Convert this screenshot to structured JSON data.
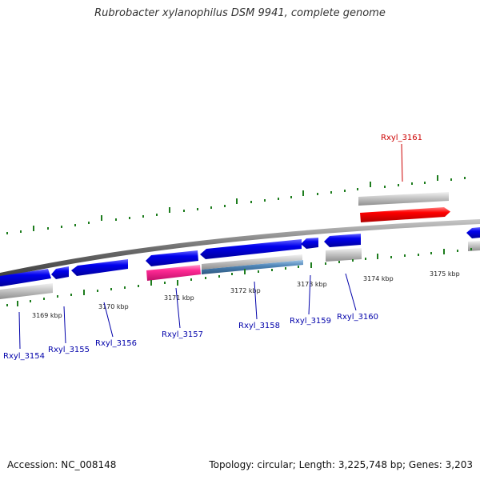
{
  "title": "Rubrobacter xylanophilus DSM 9941, complete genome",
  "footer": {
    "accession": "Accession: NC_008148",
    "stats": "Topology: circular; Length: 3,225,748 bp; Genes: 3,203"
  },
  "colors": {
    "forward_gene": "#ee0000",
    "reverse_gene": "#0000dd",
    "highlight_gene": "#ff3399",
    "rna_gene": "#4f86b8",
    "feature_track": "#bdbdbd",
    "backbone": "#7a7a7a",
    "tick": "#1e7d1e",
    "label_forward": "#cc0000",
    "label_reverse": "#0000aa"
  },
  "kbp_marks": [
    "3169 kbp",
    "3170 kbp",
    "3171 kbp",
    "3172 kbp",
    "3173 kbp",
    "3174 kbp",
    "3175 kbp"
  ],
  "genes": [
    {
      "id": "Rxyl_3154",
      "strand": "reverse",
      "color": "reverse_gene"
    },
    {
      "id": "Rxyl_3155",
      "strand": "reverse",
      "color": "reverse_gene"
    },
    {
      "id": "Rxyl_3156",
      "strand": "reverse",
      "color": "reverse_gene"
    },
    {
      "id": "Rxyl_3157",
      "strand": "reverse",
      "color": "reverse_gene"
    },
    {
      "id": "Rxyl_3158",
      "strand": "reverse",
      "color": "reverse_gene"
    },
    {
      "id": "Rxyl_3159",
      "strand": "reverse",
      "color": "reverse_gene"
    },
    {
      "id": "Rxyl_3160",
      "strand": "reverse",
      "color": "reverse_gene"
    },
    {
      "id": "Rxyl_3161",
      "strand": "forward",
      "color": "forward_gene"
    }
  ]
}
